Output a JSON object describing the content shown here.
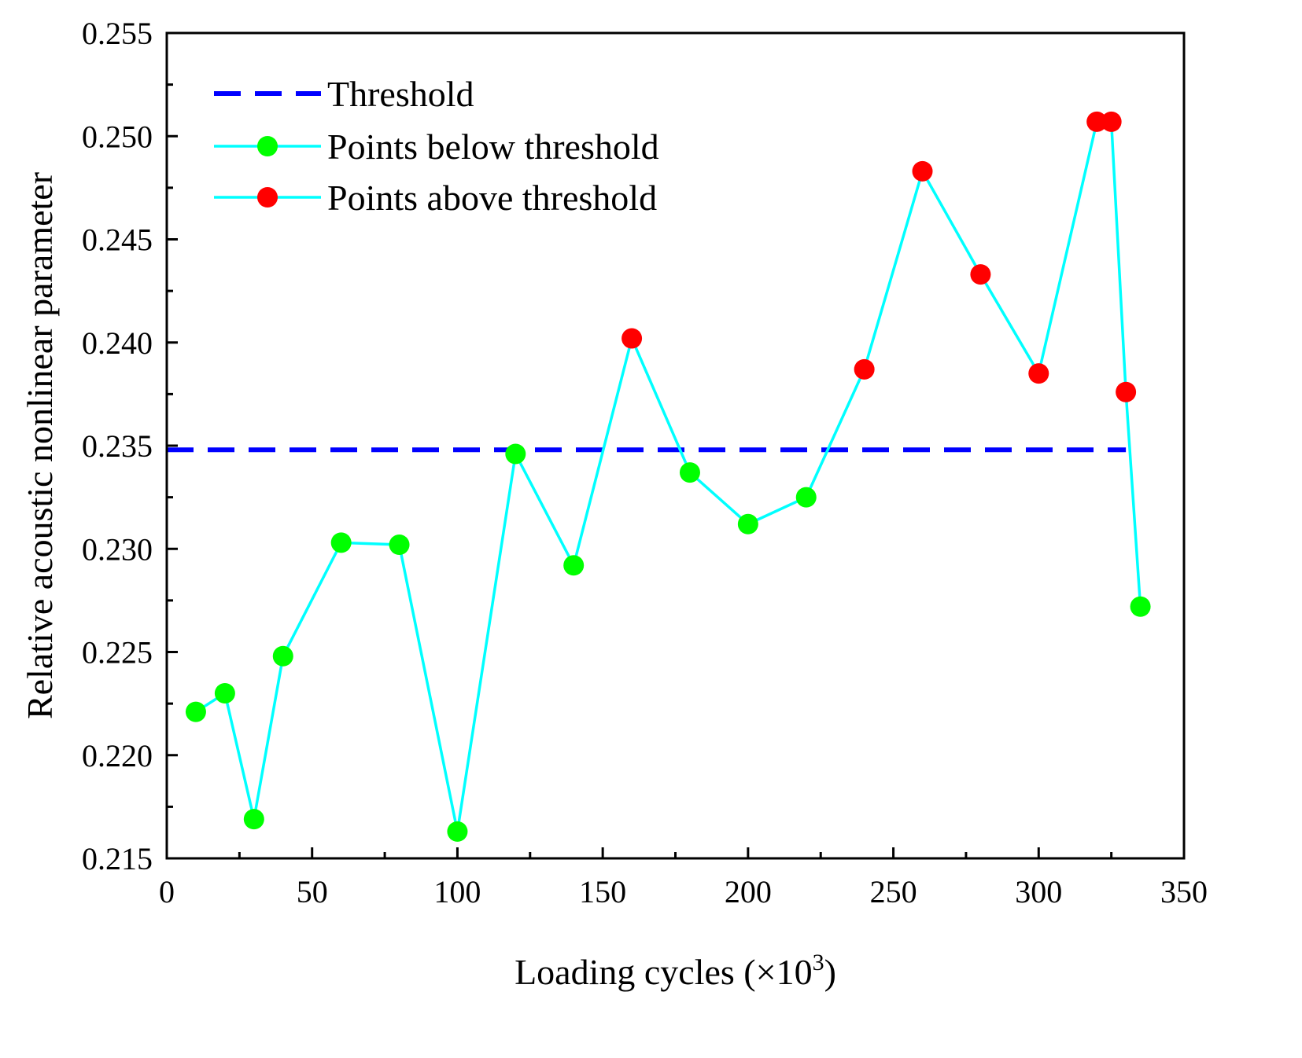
{
  "chart_data": {
    "type": "line",
    "title": "",
    "xlabel_main": "Loading cycles (×10",
    "xlabel_sup": "3",
    "xlabel_close": ")",
    "ylabel": "Relative acoustic nonlinear parameter",
    "xlim": [
      0,
      350
    ],
    "ylim": [
      0.215,
      0.255
    ],
    "xticks": [
      0,
      50,
      100,
      150,
      200,
      250,
      300,
      350
    ],
    "xtick_labels": [
      "0",
      "50",
      "100",
      "150",
      "200",
      "250",
      "300",
      "350"
    ],
    "yticks": [
      0.215,
      0.22,
      0.225,
      0.23,
      0.235,
      0.24,
      0.245,
      0.25,
      0.255
    ],
    "ytick_labels": [
      "0.215",
      "0.220",
      "0.225",
      "0.230",
      "0.235",
      "0.240",
      "0.245",
      "0.250",
      "0.255"
    ],
    "grid": false,
    "legend_position": "top-left",
    "threshold": {
      "name": "Threshold",
      "value": 0.2348,
      "x_range": [
        0,
        330
      ],
      "color": "#0000ff"
    },
    "series": [
      {
        "name": "Relative acoustic nonlinear parameter",
        "line_color": "#00ffff",
        "points": [
          {
            "x": 10,
            "y": 0.2221,
            "class": "below"
          },
          {
            "x": 20,
            "y": 0.223,
            "class": "below"
          },
          {
            "x": 30,
            "y": 0.2169,
            "class": "below"
          },
          {
            "x": 40,
            "y": 0.2248,
            "class": "below"
          },
          {
            "x": 60,
            "y": 0.2303,
            "class": "below"
          },
          {
            "x": 80,
            "y": 0.2302,
            "class": "below"
          },
          {
            "x": 100,
            "y": 0.2163,
            "class": "below"
          },
          {
            "x": 120,
            "y": 0.2346,
            "class": "below"
          },
          {
            "x": 140,
            "y": 0.2292,
            "class": "below"
          },
          {
            "x": 160,
            "y": 0.2402,
            "class": "above"
          },
          {
            "x": 180,
            "y": 0.2337,
            "class": "below"
          },
          {
            "x": 200,
            "y": 0.2312,
            "class": "below"
          },
          {
            "x": 220,
            "y": 0.2325,
            "class": "below"
          },
          {
            "x": 240,
            "y": 0.2387,
            "class": "above"
          },
          {
            "x": 260,
            "y": 0.2483,
            "class": "above"
          },
          {
            "x": 280,
            "y": 0.2433,
            "class": "above"
          },
          {
            "x": 300,
            "y": 0.2385,
            "class": "above"
          },
          {
            "x": 320,
            "y": 0.2507,
            "class": "above"
          },
          {
            "x": 325,
            "y": 0.2507,
            "class": "above"
          },
          {
            "x": 330,
            "y": 0.2376,
            "class": "above"
          },
          {
            "x": 335,
            "y": 0.2272,
            "class": "below"
          }
        ]
      }
    ],
    "legend": [
      {
        "label": "Threshold",
        "kind": "dashed",
        "color": "#0000ff"
      },
      {
        "label": "Points below threshold",
        "kind": "marker",
        "color": "#00ff00",
        "line_color": "#00ffff"
      },
      {
        "label": "Points above threshold",
        "kind": "marker",
        "color": "#ff0000",
        "line_color": "#00ffff"
      }
    ],
    "colors": {
      "below": "#00ff00",
      "above": "#ff0000",
      "line": "#00ffff",
      "threshold": "#0000ff",
      "axes": "#000000"
    }
  }
}
